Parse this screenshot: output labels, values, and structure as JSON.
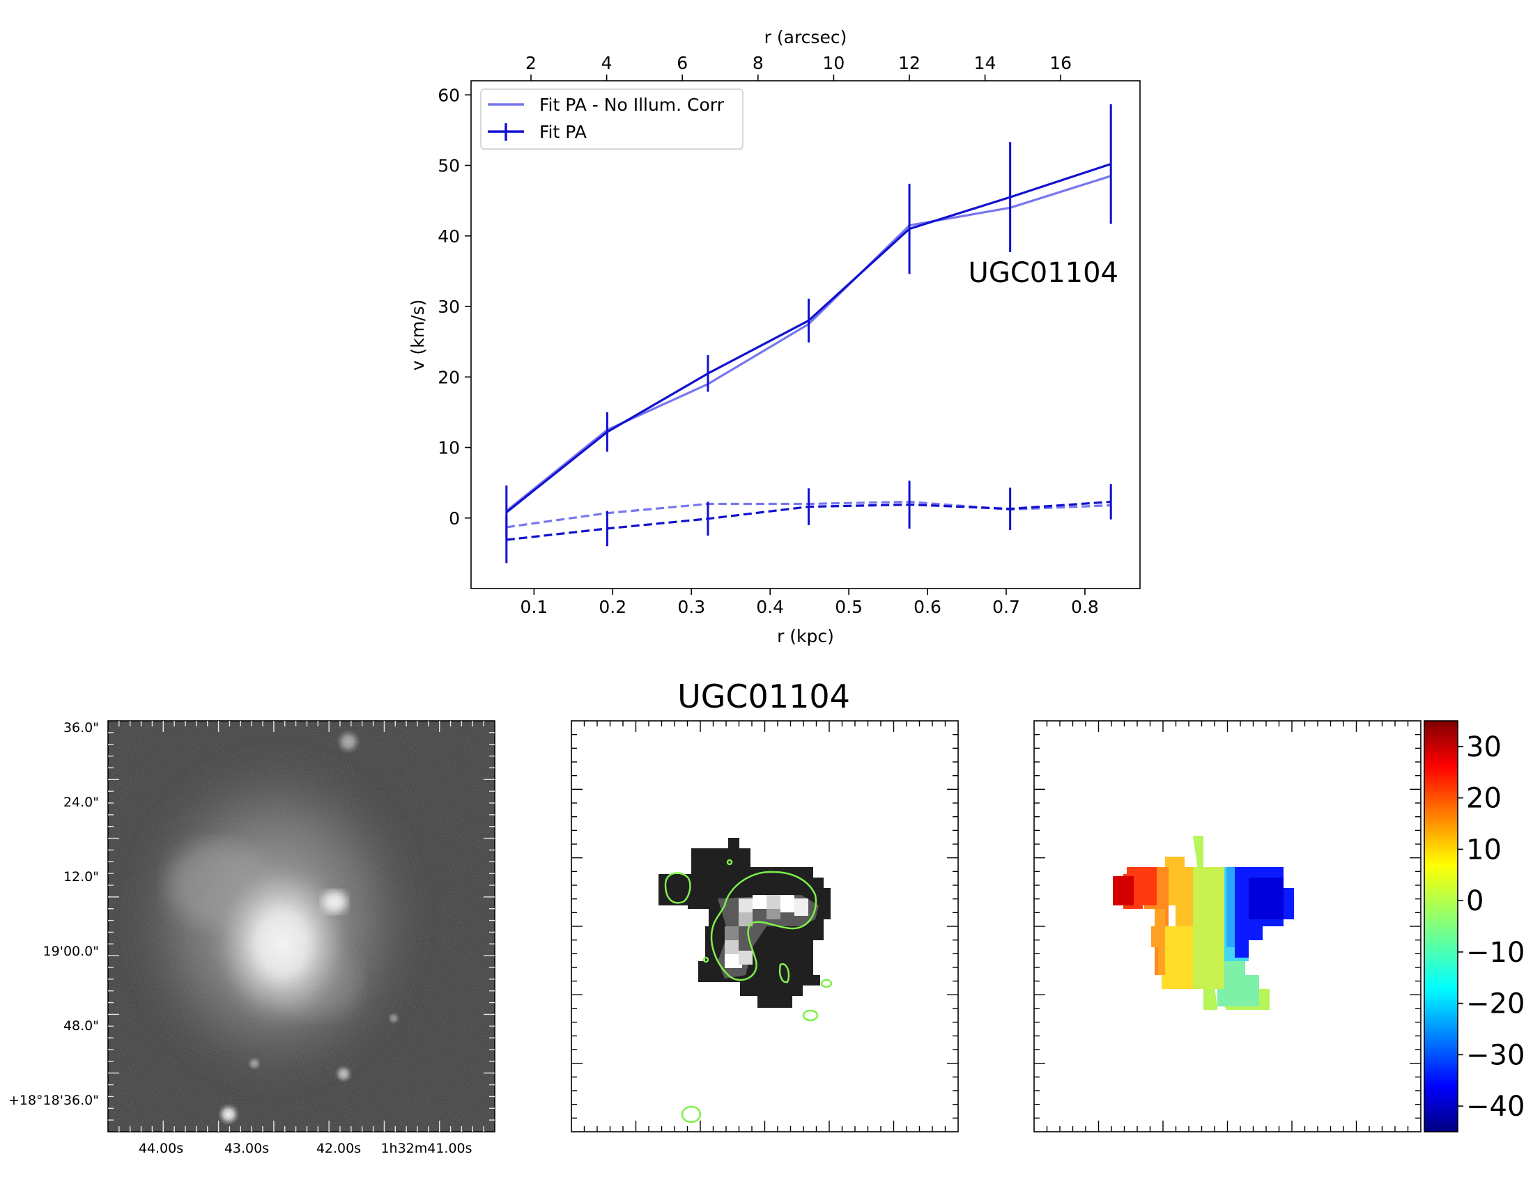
{
  "chart_data": [
    {
      "type": "line",
      "annotation": "UGC01104",
      "xlabel": "r (kpc)",
      "xlabel_top": "r (arcsec)",
      "ylabel": "v (km/s)",
      "xlim": [
        0.02,
        0.87
      ],
      "ylim": [
        -10,
        62
      ],
      "x_ticks": [
        "0.1",
        "0.2",
        "0.3",
        "0.4",
        "0.5",
        "0.6",
        "0.7",
        "0.8"
      ],
      "x_tick_values": [
        0.1,
        0.2,
        0.3,
        0.4,
        0.5,
        0.6,
        0.7,
        0.8
      ],
      "top_ticks": [
        "2",
        "4",
        "6",
        "8",
        "10",
        "12",
        "14",
        "16"
      ],
      "top_tick_values": [
        2,
        4,
        6,
        8,
        10,
        12,
        14,
        16
      ],
      "arcsec_per_kpc": 20.8,
      "y_ticks": [
        "0",
        "10",
        "20",
        "30",
        "40",
        "50",
        "60"
      ],
      "y_tick_values": [
        0,
        10,
        20,
        30,
        40,
        50,
        60
      ],
      "legend": {
        "position": "upper-left",
        "entries": [
          "Fit PA - No Illum. Corr",
          "Fit PA"
        ]
      },
      "x": [
        0.065,
        0.193,
        0.321,
        0.449,
        0.577,
        0.705,
        0.833
      ],
      "series": [
        {
          "name": "Fit PA - No Illum. Corr",
          "style": "solid",
          "color": "#7777ee",
          "values": [
            1.0,
            12.5,
            19.0,
            27.5,
            41.5,
            44.0,
            48.5
          ]
        },
        {
          "name": "Fit PA",
          "style": "solid",
          "color": "#1010d0",
          "values": [
            0.8,
            12.2,
            20.5,
            28.0,
            41.0,
            45.5,
            50.2
          ],
          "errors": [
            3.8,
            2.8,
            2.6,
            3.1,
            6.4,
            7.8,
            8.5
          ]
        },
        {
          "style": "dashed",
          "color": "#7777ee",
          "values": [
            -1.3,
            0.7,
            2.0,
            2.0,
            2.3,
            1.2,
            1.8
          ]
        },
        {
          "style": "dashed",
          "color": "#1010d0",
          "values": [
            -3.1,
            -1.5,
            -0.1,
            1.6,
            1.9,
            1.3,
            2.3
          ],
          "errors": [
            3.3,
            2.5,
            2.4,
            2.6,
            3.4,
            3.0,
            2.5
          ]
        }
      ]
    },
    {
      "type": "image",
      "panel": "optical",
      "dec_labels": [
        "36.0\"",
        "24.0\"",
        "12.0\"",
        "19'00.0\"",
        "48.0\"",
        "+18°18'36.0\""
      ],
      "ra_labels": [
        "44.00s",
        "43.00s",
        "42.00s",
        "1h32m41.00s"
      ]
    },
    {
      "type": "heatmap",
      "panel": "intensity",
      "title": "UGC01104",
      "contour_color": "#7ef04a"
    },
    {
      "type": "heatmap",
      "panel": "velocity",
      "colorbar": {
        "min": -45,
        "max": 35,
        "ticks": [
          "30",
          "20",
          "10",
          "0",
          "−10",
          "−20",
          "−30",
          "−40"
        ],
        "tick_values": [
          30,
          20,
          10,
          0,
          -10,
          -20,
          -30,
          -40
        ]
      }
    }
  ]
}
